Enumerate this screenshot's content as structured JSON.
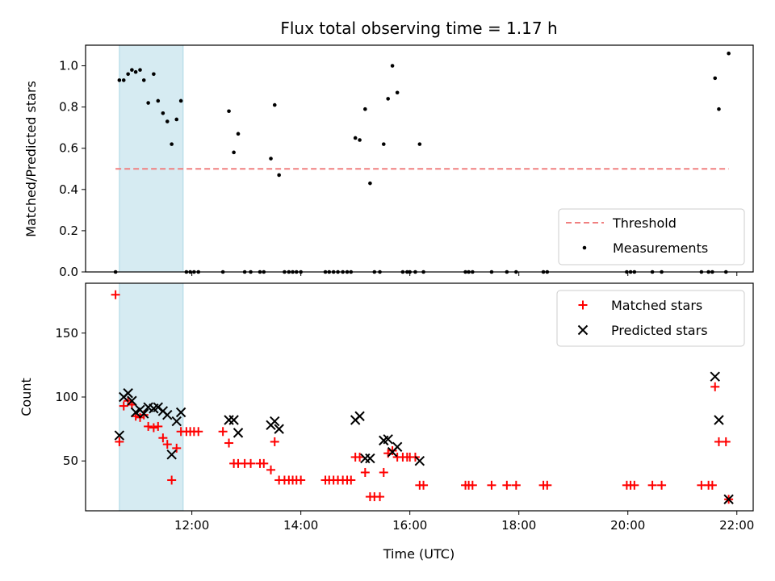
{
  "chart_data": {
    "title": "Flux total observing time = 1.17 h",
    "xlabel": "Time (UTC)",
    "x_unit": "hours UTC",
    "xlim": [
      10.05,
      22.3
    ],
    "xticks": [
      {
        "value": 12,
        "label": "12:00"
      },
      {
        "value": 14,
        "label": "14:00"
      },
      {
        "value": 16,
        "label": "16:00"
      },
      {
        "value": 18,
        "label": "18:00"
      },
      {
        "value": 20,
        "label": "20:00"
      },
      {
        "value": 22,
        "label": "22:00"
      }
    ],
    "highlight_band": {
      "x_start": 10.67,
      "x_end": 11.84,
      "color": "#add8e6"
    },
    "panels": [
      {
        "id": "ratio",
        "type": "scatter",
        "ylabel": "Matched/Predicted stars",
        "ylim": [
          0,
          1.1
        ],
        "yticks": [
          "0.0",
          "0.2",
          "0.4",
          "0.6",
          "0.8",
          "1.0"
        ],
        "threshold": {
          "name": "Threshold",
          "value": 0.5,
          "x_start": 10.6,
          "x_end": 21.85,
          "color": "#f08080"
        },
        "legend": {
          "placement": "lower-right",
          "entries": [
            "Threshold",
            "Measurements"
          ]
        },
        "series": [
          {
            "name": "Measurements",
            "color": "#000000",
            "points": [
              [
                10.6,
                0
              ],
              [
                10.67,
                0.93
              ],
              [
                10.75,
                0.93
              ],
              [
                10.83,
                0.96
              ],
              [
                10.9,
                0.98
              ],
              [
                10.97,
                0.97
              ],
              [
                11.05,
                0.98
              ],
              [
                11.12,
                0.93
              ],
              [
                11.2,
                0.82
              ],
              [
                11.3,
                0.96
              ],
              [
                11.38,
                0.83
              ],
              [
                11.47,
                0.77
              ],
              [
                11.55,
                0.73
              ],
              [
                11.63,
                0.62
              ],
              [
                11.72,
                0.74
              ],
              [
                11.8,
                0.83
              ],
              [
                11.9,
                0
              ],
              [
                11.97,
                0
              ],
              [
                12.04,
                0
              ],
              [
                12.12,
                0
              ],
              [
                12.57,
                0
              ],
              [
                12.68,
                0.78
              ],
              [
                12.77,
                0.58
              ],
              [
                12.85,
                0.67
              ],
              [
                12.97,
                0
              ],
              [
                13.08,
                0
              ],
              [
                13.25,
                0
              ],
              [
                13.32,
                0
              ],
              [
                13.45,
                0.55
              ],
              [
                13.52,
                0.81
              ],
              [
                13.6,
                0.47
              ],
              [
                13.7,
                0
              ],
              [
                13.78,
                0
              ],
              [
                13.85,
                0
              ],
              [
                13.92,
                0
              ],
              [
                14.0,
                0
              ],
              [
                14.45,
                0
              ],
              [
                14.52,
                0
              ],
              [
                14.6,
                0
              ],
              [
                14.68,
                0
              ],
              [
                14.77,
                0
              ],
              [
                14.85,
                0
              ],
              [
                14.92,
                0
              ],
              [
                15.0,
                0.65
              ],
              [
                15.08,
                0.64
              ],
              [
                15.18,
                0.79
              ],
              [
                15.27,
                0.43
              ],
              [
                15.35,
                0
              ],
              [
                15.45,
                0
              ],
              [
                15.52,
                0.62
              ],
              [
                15.6,
                0.84
              ],
              [
                15.68,
                1.0
              ],
              [
                15.77,
                0.87
              ],
              [
                15.87,
                0
              ],
              [
                15.95,
                0
              ],
              [
                16.0,
                0
              ],
              [
                16.1,
                0
              ],
              [
                16.18,
                0.62
              ],
              [
                16.25,
                0
              ],
              [
                17.02,
                0
              ],
              [
                17.08,
                0
              ],
              [
                17.15,
                0
              ],
              [
                17.5,
                0
              ],
              [
                17.78,
                0
              ],
              [
                17.95,
                0
              ],
              [
                18.45,
                0
              ],
              [
                18.52,
                0
              ],
              [
                19.98,
                0
              ],
              [
                20.05,
                0
              ],
              [
                20.12,
                0
              ],
              [
                20.45,
                0
              ],
              [
                20.62,
                0
              ],
              [
                21.35,
                0
              ],
              [
                21.48,
                0
              ],
              [
                21.55,
                0
              ],
              [
                21.6,
                0.94
              ],
              [
                21.67,
                0.79
              ],
              [
                21.8,
                0
              ],
              [
                21.85,
                1.06
              ]
            ]
          }
        ]
      },
      {
        "id": "counts",
        "type": "scatter",
        "ylabel": "Count",
        "ylim": [
          11,
          189
        ],
        "yticks": [
          "50",
          "100",
          "150"
        ],
        "legend": {
          "placement": "upper-right",
          "entries": [
            "Matched stars",
            "Predicted stars"
          ]
        },
        "series": [
          {
            "name": "Matched stars",
            "marker": "plus",
            "color": "#ff0000",
            "points": [
              [
                10.6,
                180
              ],
              [
                10.67,
                65
              ],
              [
                10.75,
                93
              ],
              [
                10.83,
                97
              ],
              [
                10.9,
                94
              ],
              [
                10.97,
                85
              ],
              [
                11.05,
                84
              ],
              [
                11.12,
                86
              ],
              [
                11.2,
                77
              ],
              [
                11.3,
                76
              ],
              [
                11.38,
                77
              ],
              [
                11.47,
                68
              ],
              [
                11.55,
                63
              ],
              [
                11.63,
                35
              ],
              [
                11.72,
                60
              ],
              [
                11.8,
                73
              ],
              [
                11.9,
                73
              ],
              [
                11.97,
                73
              ],
              [
                12.04,
                73
              ],
              [
                12.12,
                73
              ],
              [
                12.57,
                73
              ],
              [
                12.68,
                64
              ],
              [
                12.77,
                48
              ],
              [
                12.85,
                48
              ],
              [
                12.97,
                48
              ],
              [
                13.08,
                48
              ],
              [
                13.25,
                48
              ],
              [
                13.32,
                48
              ],
              [
                13.45,
                43
              ],
              [
                13.52,
                65
              ],
              [
                13.6,
                35
              ],
              [
                13.7,
                35
              ],
              [
                13.78,
                35
              ],
              [
                13.85,
                35
              ],
              [
                13.92,
                35
              ],
              [
                14.0,
                35
              ],
              [
                14.45,
                35
              ],
              [
                14.52,
                35
              ],
              [
                14.6,
                35
              ],
              [
                14.68,
                35
              ],
              [
                14.77,
                35
              ],
              [
                14.85,
                35
              ],
              [
                14.92,
                35
              ],
              [
                15.0,
                53
              ],
              [
                15.08,
                53
              ],
              [
                15.18,
                41
              ],
              [
                15.27,
                22
              ],
              [
                15.35,
                22
              ],
              [
                15.45,
                22
              ],
              [
                15.52,
                41
              ],
              [
                15.6,
                56
              ],
              [
                15.68,
                58
              ],
              [
                15.77,
                53
              ],
              [
                15.87,
                53
              ],
              [
                15.95,
                53
              ],
              [
                16.0,
                53
              ],
              [
                16.1,
                53
              ],
              [
                16.18,
                31
              ],
              [
                16.25,
                31
              ],
              [
                17.02,
                31
              ],
              [
                17.08,
                31
              ],
              [
                17.15,
                31
              ],
              [
                17.5,
                31
              ],
              [
                17.78,
                31
              ],
              [
                17.95,
                31
              ],
              [
                18.45,
                31
              ],
              [
                18.52,
                31
              ],
              [
                19.98,
                31
              ],
              [
                20.05,
                31
              ],
              [
                20.12,
                31
              ],
              [
                20.45,
                31
              ],
              [
                20.62,
                31
              ],
              [
                21.35,
                31
              ],
              [
                21.48,
                31
              ],
              [
                21.55,
                31
              ],
              [
                21.6,
                108
              ],
              [
                21.67,
                65
              ],
              [
                21.8,
                65
              ],
              [
                21.85,
                20
              ]
            ]
          },
          {
            "name": "Predicted stars",
            "marker": "x",
            "color": "#000000",
            "points": [
              [
                10.67,
                70
              ],
              [
                10.75,
                100
              ],
              [
                10.83,
                103
              ],
              [
                10.9,
                97
              ],
              [
                10.97,
                88
              ],
              [
                11.05,
                90
              ],
              [
                11.12,
                87
              ],
              [
                11.2,
                92
              ],
              [
                11.3,
                91
              ],
              [
                11.38,
                92
              ],
              [
                11.47,
                89
              ],
              [
                11.55,
                86
              ],
              [
                11.63,
                55
              ],
              [
                11.72,
                81
              ],
              [
                11.8,
                88
              ],
              [
                12.68,
                82
              ],
              [
                12.77,
                82
              ],
              [
                12.85,
                72
              ],
              [
                13.45,
                78
              ],
              [
                13.52,
                81
              ],
              [
                13.6,
                75
              ],
              [
                15.0,
                82
              ],
              [
                15.08,
                85
              ],
              [
                15.18,
                52
              ],
              [
                15.27,
                52
              ],
              [
                15.52,
                66
              ],
              [
                15.6,
                67
              ],
              [
                15.68,
                57
              ],
              [
                15.77,
                61
              ],
              [
                16.18,
                50
              ],
              [
                21.6,
                116
              ],
              [
                21.67,
                82
              ],
              [
                21.85,
                20
              ]
            ]
          }
        ]
      }
    ]
  }
}
